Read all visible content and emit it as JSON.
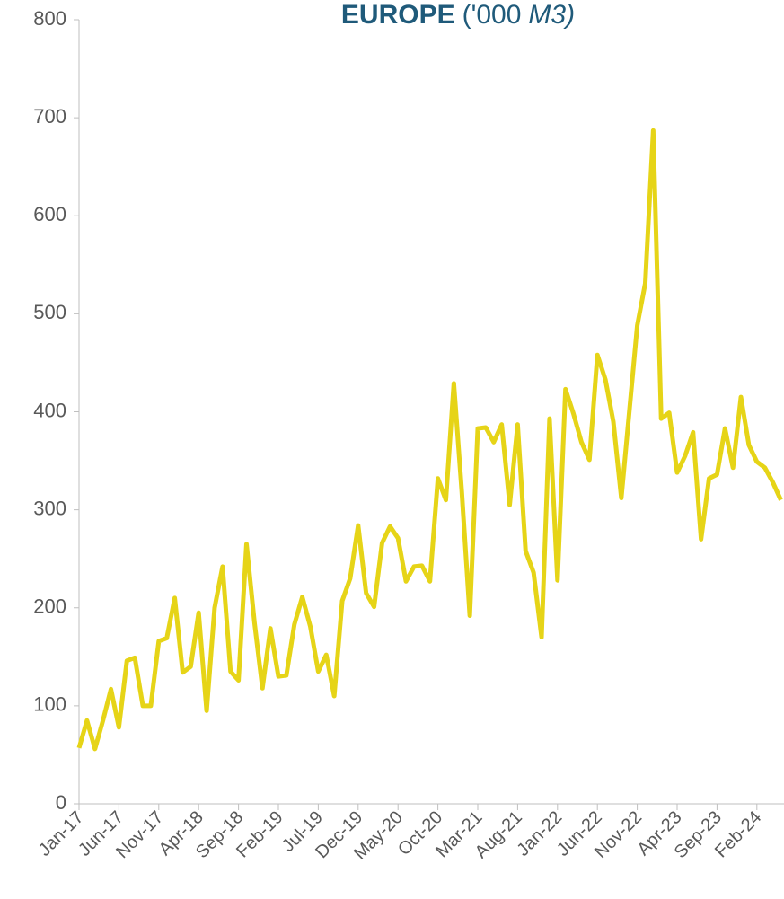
{
  "chart_data": {
    "type": "line",
    "title": [
      "EUROPE",
      "('000",
      "M3)"
    ],
    "categories": [
      "Jan-17",
      null,
      null,
      null,
      null,
      "Jun-17",
      null,
      null,
      null,
      null,
      "Nov-17",
      null,
      null,
      null,
      null,
      "Apr-18",
      null,
      null,
      null,
      null,
      "Sep-18",
      null,
      null,
      null,
      null,
      "Feb-19",
      null,
      null,
      null,
      null,
      "Jul-19",
      null,
      null,
      null,
      null,
      "Dec-19",
      null,
      null,
      null,
      null,
      "May-20",
      null,
      null,
      null,
      null,
      "Oct-20",
      null,
      null,
      null,
      null,
      "Mar-21",
      null,
      null,
      null,
      null,
      "Aug-21",
      null,
      null,
      null,
      null,
      "Jan-22",
      null,
      null,
      null,
      null,
      "Jun-22",
      null,
      null,
      null,
      null,
      "Nov-22",
      null,
      null,
      null,
      null,
      "Apr-23",
      null,
      null,
      null,
      null,
      "Sep-23",
      null,
      null,
      null,
      null,
      "Feb-24",
      null,
      null,
      null
    ],
    "series": [
      {
        "color": "#e6d417",
        "values": [
          57,
          85,
          56,
          85,
          117,
          78,
          146,
          149,
          100,
          100,
          166,
          169,
          210,
          134,
          140,
          195,
          95,
          200,
          242,
          135,
          126,
          265,
          185,
          118,
          179,
          130,
          131,
          183,
          211,
          181,
          135,
          152,
          110,
          207,
          230,
          284,
          215,
          201,
          266,
          283,
          271,
          227,
          242,
          243,
          227,
          332,
          310,
          429,
          318,
          192,
          383,
          384,
          369,
          387,
          305,
          387,
          258,
          236,
          170,
          393,
          228,
          423,
          398,
          369,
          351,
          458,
          433,
          390,
          312,
          400,
          488,
          531,
          687,
          393,
          399,
          338,
          355,
          379,
          270,
          332,
          336,
          383,
          343,
          415,
          366,
          349,
          343,
          328,
          310
        ]
      }
    ],
    "ylim": [
      0,
      800
    ],
    "yticks": [
      0,
      100,
      200,
      300,
      400,
      500,
      600,
      700,
      800
    ]
  }
}
